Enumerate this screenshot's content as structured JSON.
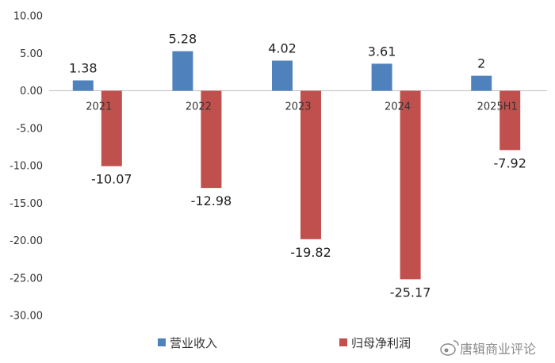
{
  "chart_data": {
    "type": "bar",
    "title": "",
    "xlabel": "",
    "ylabel": "",
    "categories": [
      "2021",
      "2022",
      "2023",
      "2024",
      "2025H1"
    ],
    "series": [
      {
        "name": "营业收入",
        "color": "#4f81bd",
        "values": [
          1.38,
          5.28,
          4.02,
          3.61,
          2
        ],
        "labels": [
          "1.38",
          "5.28",
          "4.02",
          "3.61",
          "2"
        ]
      },
      {
        "name": "归母净利润",
        "color": "#c0504d",
        "values": [
          -10.07,
          -12.98,
          -19.82,
          -25.17,
          -7.92
        ],
        "labels": [
          "-10.07",
          "-12.98",
          "-19.82",
          "-25.17",
          "-7.92"
        ]
      }
    ],
    "ylim": [
      -30,
      10
    ],
    "yticks": [
      10,
      5,
      0,
      -5,
      -10,
      -15,
      -20,
      -25,
      -30
    ],
    "ytick_labels": [
      "10.00",
      "5.00",
      "0.00",
      "-5.00",
      "-10.00",
      "-15.00",
      "-20.00",
      "-25.00",
      "-30.00"
    ],
    "grid": false,
    "legend_position": "bottom"
  },
  "watermark": {
    "text": "唐辑商业评论",
    "icon": "weibo-icon"
  }
}
